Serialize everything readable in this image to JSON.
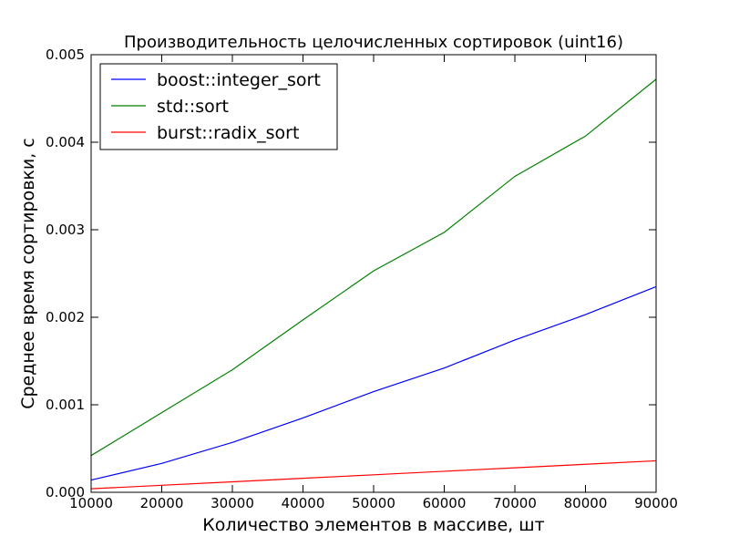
{
  "chart_data": {
    "type": "line",
    "title": "Производительность целочисленных сортировок (uint16)",
    "xlabel": "Количество элементов в массиве, шт",
    "ylabel": "Среднее время сортировки, с",
    "x": [
      10000,
      20000,
      30000,
      40000,
      50000,
      60000,
      70000,
      80000,
      90000
    ],
    "xlim": [
      10000,
      90000
    ],
    "ylim": [
      0,
      0.005
    ],
    "xticks": [
      10000,
      20000,
      30000,
      40000,
      50000,
      60000,
      70000,
      80000,
      90000
    ],
    "xtick_labels": [
      "10000",
      "20000",
      "30000",
      "40000",
      "50000",
      "60000",
      "70000",
      "80000",
      "90000"
    ],
    "yticks": [
      0,
      0.001,
      0.002,
      0.003,
      0.004,
      0.005
    ],
    "ytick_labels": [
      "0.000",
      "0.001",
      "0.002",
      "0.003",
      "0.004",
      "0.005"
    ],
    "grid": false,
    "legend_position": "top-left",
    "series": [
      {
        "name": "boost::integer_sort",
        "color": "#0000ff",
        "values": [
          0.00014,
          0.00033,
          0.00057,
          0.00085,
          0.00115,
          0.00142,
          0.00174,
          0.00203,
          0.00235
        ]
      },
      {
        "name": "std::sort",
        "color": "#008000",
        "values": [
          0.00042,
          0.00091,
          0.0014,
          0.00197,
          0.00253,
          0.00297,
          0.00361,
          0.00407,
          0.00472
        ]
      },
      {
        "name": "burst::radix_sort",
        "color": "#ff0000",
        "values": [
          4e-05,
          8e-05,
          0.00012,
          0.00016,
          0.0002,
          0.00024,
          0.00028,
          0.00032,
          0.00036
        ]
      }
    ]
  }
}
